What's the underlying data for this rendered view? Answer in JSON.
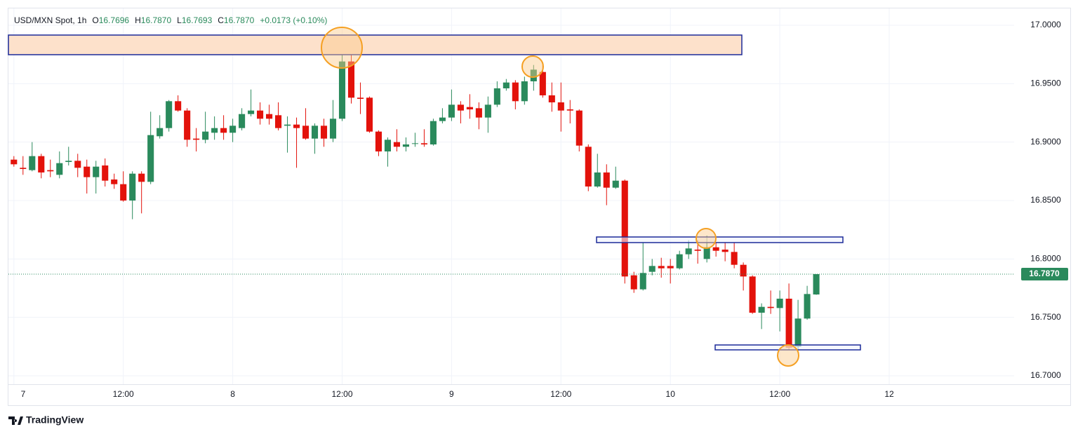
{
  "chart_data": {
    "type": "candlestick",
    "legend": {
      "symbol": "USD/MXN Spot, 1h",
      "ohlc": [
        {
          "key": "O",
          "value": "16.7696"
        },
        {
          "key": "H",
          "value": "16.7870"
        },
        {
          "key": "L",
          "value": "16.7693"
        },
        {
          "key": "C",
          "value": "16.7870"
        }
      ],
      "change": "+0.0173 (+0.10%)"
    },
    "brand": "TradingView",
    "up_color": "#2a8a5c",
    "down_color": "#e3120b",
    "grid": true,
    "x": [
      0,
      1,
      2,
      3,
      4,
      5,
      6,
      7,
      8,
      9,
      10,
      11,
      12,
      13,
      14,
      15,
      16,
      17,
      18,
      19,
      20,
      21,
      22,
      23,
      24,
      25,
      26,
      27,
      28,
      29,
      30,
      31,
      32,
      33,
      34,
      35,
      36,
      37,
      38,
      39,
      40,
      41,
      42,
      43,
      44,
      45,
      46,
      47,
      48,
      49,
      50,
      51,
      52,
      53,
      54,
      55,
      56,
      57,
      58,
      59,
      60,
      61,
      62,
      63,
      64,
      65,
      66,
      67,
      68,
      69,
      70,
      71,
      72,
      73,
      74,
      75,
      76,
      77,
      78,
      79,
      80,
      81,
      82,
      83,
      84,
      85,
      86,
      87,
      88
    ],
    "open": [
      16.885,
      16.878,
      16.876,
      16.888,
      16.876,
      16.872,
      16.883,
      16.884,
      16.879,
      16.87,
      16.88,
      16.868,
      16.864,
      16.85,
      16.873,
      16.866,
      16.905,
      16.912,
      16.935,
      16.927,
      16.903,
      16.902,
      16.908,
      16.912,
      16.908,
      16.912,
      16.924,
      16.927,
      16.924,
      16.923,
      16.914,
      16.915,
      16.914,
      16.903,
      16.914,
      16.903,
      16.92,
      16.969,
      16.938,
      16.938,
      16.909,
      16.892,
      16.9,
      16.896,
      16.899,
      16.899,
      16.898,
      16.918,
      16.921,
      16.932,
      16.93,
      16.929,
      16.921,
      16.932,
      16.946,
      16.951,
      16.935,
      16.952,
      16.96,
      16.94,
      16.934,
      16.928,
      16.927,
      16.896,
      16.862,
      16.874,
      16.861,
      16.867,
      16.786,
      16.774,
      16.789,
      16.794,
      16.794,
      16.792,
      16.804,
      16.808,
      16.8,
      16.81,
      16.808,
      16.806,
      16.795,
      16.785,
      16.754,
      16.759,
      16.758,
      16.766,
      16.725,
      16.749,
      16.7696
    ],
    "high": [
      16.888,
      16.888,
      16.9,
      16.89,
      16.885,
      16.892,
      16.896,
      16.89,
      16.885,
      16.884,
      16.886,
      16.873,
      16.875,
      16.875,
      16.875,
      16.926,
      16.923,
      16.936,
      16.94,
      16.929,
      16.912,
      16.926,
      16.922,
      16.923,
      16.92,
      16.929,
      16.945,
      16.934,
      16.932,
      16.934,
      16.922,
      16.921,
      16.929,
      16.916,
      16.92,
      16.936,
      16.98,
      16.978,
      16.951,
      16.939,
      16.91,
      16.904,
      16.911,
      16.904,
      16.908,
      16.911,
      16.92,
      16.929,
      16.945,
      16.935,
      16.941,
      16.934,
      16.939,
      16.952,
      16.954,
      16.953,
      16.956,
      16.966,
      16.966,
      16.951,
      16.951,
      16.936,
      16.928,
      16.898,
      16.89,
      16.881,
      16.879,
      16.868,
      16.789,
      16.814,
      16.8,
      16.801,
      16.8,
      16.807,
      16.816,
      16.816,
      16.82,
      16.814,
      16.814,
      16.814,
      16.797,
      16.786,
      16.762,
      16.773,
      16.773,
      16.779,
      16.765,
      16.777,
      16.787
    ],
    "low": [
      16.879,
      16.872,
      16.875,
      16.869,
      16.87,
      16.869,
      16.88,
      16.87,
      16.856,
      16.856,
      16.862,
      16.86,
      16.849,
      16.834,
      16.839,
      16.864,
      16.903,
      16.909,
      16.926,
      16.896,
      16.892,
      16.899,
      16.902,
      16.902,
      16.9,
      16.91,
      16.922,
      16.915,
      16.915,
      16.91,
      16.891,
      16.878,
      16.902,
      16.89,
      16.896,
      16.9,
      16.918,
      16.933,
      16.924,
      16.908,
      16.888,
      16.879,
      16.892,
      16.892,
      16.896,
      16.896,
      16.897,
      16.916,
      16.918,
      16.916,
      16.92,
      16.911,
      16.908,
      16.93,
      16.944,
      16.928,
      16.932,
      16.944,
      16.938,
      16.926,
      16.909,
      16.916,
      16.892,
      16.858,
      16.861,
      16.846,
      16.86,
      16.779,
      16.771,
      16.773,
      16.786,
      16.784,
      16.779,
      16.791,
      16.8,
      16.796,
      16.797,
      16.802,
      16.798,
      16.792,
      16.773,
      16.753,
      16.74,
      16.753,
      16.738,
      16.722,
      16.722,
      16.748,
      16.7693
    ],
    "close": [
      16.881,
      16.877,
      16.888,
      16.874,
      16.875,
      16.882,
      16.884,
      16.878,
      16.87,
      16.879,
      16.867,
      16.864,
      16.85,
      16.873,
      16.866,
      16.906,
      16.912,
      16.935,
      16.927,
      16.902,
      16.902,
      16.909,
      16.912,
      16.908,
      16.914,
      16.924,
      16.927,
      16.92,
      16.92,
      16.912,
      16.915,
      16.912,
      16.903,
      16.914,
      16.903,
      16.92,
      16.969,
      16.938,
      16.937,
      16.909,
      16.892,
      16.902,
      16.896,
      16.898,
      16.899,
      16.898,
      16.918,
      16.921,
      16.932,
      16.927,
      16.928,
      16.921,
      16.932,
      16.946,
      16.951,
      16.935,
      16.952,
      16.962,
      16.94,
      16.934,
      16.927,
      16.927,
      16.897,
      16.862,
      16.874,
      16.861,
      16.867,
      16.785,
      16.774,
      16.788,
      16.794,
      16.792,
      16.792,
      16.804,
      16.809,
      16.807,
      16.81,
      16.807,
      16.806,
      16.795,
      16.785,
      16.754,
      16.759,
      16.758,
      16.766,
      16.724,
      16.749,
      16.77,
      16.787
    ],
    "last_price": {
      "value": 16.787,
      "label": "16.7870"
    },
    "xlim": [
      -0.6,
      109.7
    ],
    "xticks": [
      {
        "value": 0,
        "label": "7"
      },
      {
        "value": 12,
        "label": "12:00"
      },
      {
        "value": 24,
        "label": "8"
      },
      {
        "value": 36,
        "label": "12:00"
      },
      {
        "value": 48,
        "label": "9"
      },
      {
        "value": 60,
        "label": "12:00"
      },
      {
        "value": 72,
        "label": "10"
      },
      {
        "value": 84,
        "label": "12:00"
      },
      {
        "value": 96,
        "label": "12"
      }
    ],
    "ylim": [
      16.6928,
      17.0144
    ],
    "yticks": [
      {
        "value": 16.7,
        "label": "16.7000"
      },
      {
        "value": 16.75,
        "label": "16.7500"
      },
      {
        "value": 16.8,
        "label": "16.8000"
      },
      {
        "value": 16.85,
        "label": "16.8500"
      },
      {
        "value": 16.9,
        "label": "16.9000"
      },
      {
        "value": 16.95,
        "label": "16.9500"
      },
      {
        "value": 17.0,
        "label": "17.0000"
      }
    ]
  }
}
